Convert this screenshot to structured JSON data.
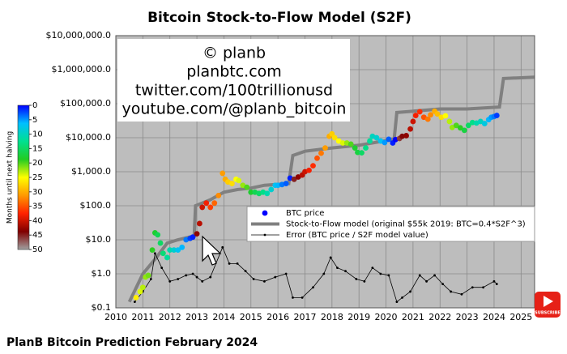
{
  "chart_data": {
    "type": "scatter",
    "title": "Bitcoin Stock-to-Flow Model (S2F)",
    "annotations": [
      "© planb",
      "planbtc.com",
      "twitter.com/100trillionusd",
      "youtube.com/@planb_bitcoin"
    ],
    "log_y": true,
    "grid": true,
    "legend": "lower right",
    "xlim": [
      2010,
      2025.5
    ],
    "xticks": [
      2010,
      2011,
      2012,
      2013,
      2014,
      2015,
      2016,
      2017,
      2018,
      2019,
      2020,
      2021,
      2022,
      2023,
      2024,
      2025
    ],
    "ylim": [
      0.1,
      10000000
    ],
    "yticks": [
      {
        "value": 0.1,
        "label": "$0.1"
      },
      {
        "value": 1,
        "label": "$1.0"
      },
      {
        "value": 10,
        "label": "$10.0"
      },
      {
        "value": 100,
        "label": "$100.0"
      },
      {
        "value": 1000,
        "label": "$1,000.0"
      },
      {
        "value": 10000,
        "label": "$10,000.0"
      },
      {
        "value": 100000,
        "label": "$100,000.0"
      },
      {
        "value": 1000000,
        "label": "$1,000,000.0"
      },
      {
        "value": 10000000,
        "label": "$10,000,000.0"
      }
    ],
    "colorbar": {
      "label": "Months until next halving",
      "clim": [
        0,
        50
      ],
      "ticks": [
        0,
        5,
        10,
        15,
        20,
        25,
        30,
        35,
        40,
        45,
        50
      ],
      "colors": [
        "#0000ff",
        "#00bfff",
        "#00e090",
        "#22cc22",
        "#ffff00",
        "#ff9900",
        "#ff2200",
        "#800000",
        "#a0a0a0"
      ]
    },
    "series": [
      {
        "name": "BTC price",
        "type": "scatter",
        "color": "#0000ff",
        "x": [
          2010.75,
          2010.9,
          2011.0,
          2011.1,
          2011.2,
          2011.35,
          2011.45,
          2011.55,
          2011.65,
          2011.75,
          2011.9,
          2012.0,
          2012.15,
          2012.3,
          2012.45,
          2012.6,
          2012.75,
          2012.85,
          2013.0,
          2013.1,
          2013.2,
          2013.35,
          2013.5,
          2013.65,
          2013.8,
          2013.95,
          2014.05,
          2014.15,
          2014.3,
          2014.45,
          2014.55,
          2014.7,
          2014.85,
          2015.0,
          2015.15,
          2015.3,
          2015.45,
          2015.6,
          2015.75,
          2015.9,
          2016.0,
          2016.15,
          2016.3,
          2016.45,
          2016.6,
          2016.75,
          2016.9,
          2017.0,
          2017.15,
          2017.3,
          2017.45,
          2017.6,
          2017.75,
          2017.9,
          2018.0,
          2018.1,
          2018.25,
          2018.4,
          2018.55,
          2018.7,
          2018.85,
          2018.95,
          2019.1,
          2019.25,
          2019.4,
          2019.5,
          2019.65,
          2019.8,
          2019.95,
          2020.1,
          2020.25,
          2020.35,
          2020.5,
          2020.6,
          2020.75,
          2020.9,
          2021.0,
          2021.1,
          2021.25,
          2021.4,
          2021.55,
          2021.65,
          2021.8,
          2021.9,
          2022.05,
          2022.2,
          2022.35,
          2022.45,
          2022.6,
          2022.75,
          2022.9,
          2023.05,
          2023.2,
          2023.35,
          2023.5,
          2023.65,
          2023.8,
          2023.9,
          2024.0,
          2024.1
        ],
        "values": [
          0.2,
          0.3,
          0.4,
          0.8,
          0.9,
          5,
          16,
          14,
          8,
          4,
          3,
          5,
          5,
          5,
          6,
          10,
          11,
          12,
          15,
          30,
          90,
          120,
          90,
          120,
          200,
          900,
          600,
          500,
          450,
          600,
          550,
          400,
          350,
          250,
          250,
          230,
          250,
          230,
          300,
          400,
          400,
          420,
          450,
          650,
          600,
          700,
          800,
          1000,
          1100,
          1500,
          2500,
          3500,
          5000,
          11000,
          13000,
          10000,
          8000,
          7000,
          7000,
          6500,
          5000,
          3700,
          3600,
          5000,
          8000,
          11000,
          10000,
          8000,
          7200,
          9000,
          7000,
          8800,
          9500,
          11000,
          11500,
          18000,
          30000,
          45000,
          58000,
          40000,
          35000,
          47000,
          60000,
          50000,
          40000,
          44000,
          30000,
          20000,
          23000,
          19500,
          16500,
          23000,
          28000,
          27000,
          30000,
          26000,
          34000,
          40000,
          42000,
          45000
        ],
        "months": [
          26,
          24,
          23,
          22,
          21,
          19,
          18,
          16,
          15,
          14,
          12,
          11,
          9,
          7,
          6,
          4,
          2,
          1,
          43,
          41,
          40,
          38,
          36,
          34,
          32,
          31,
          30,
          28,
          27,
          25,
          24,
          22,
          20,
          18,
          16,
          15,
          13,
          11,
          9,
          7,
          6,
          4,
          3,
          1,
          45,
          43,
          41,
          40,
          38,
          37,
          35,
          33,
          31,
          30,
          28,
          27,
          25,
          24,
          22,
          20,
          18,
          17,
          15,
          13,
          12,
          10,
          9,
          7,
          5,
          3,
          1,
          0,
          46,
          44,
          43,
          41,
          40,
          38,
          37,
          35,
          33,
          32,
          30,
          29,
          27,
          25,
          23,
          22,
          20,
          19,
          17,
          15,
          13,
          11,
          10,
          8,
          6,
          5,
          4,
          2
        ]
      },
      {
        "name": "Stock-to-Flow model (original $55k 2019:  BTC=0.4*S2F^3)",
        "type": "line",
        "color": "#808080",
        "x": [
          2010.5,
          2011.0,
          2011.5,
          2011.9,
          2012.3,
          2012.9,
          2012.95,
          2013.5,
          2014.0,
          2014.5,
          2015.0,
          2015.5,
          2016.4,
          2016.55,
          2017.0,
          2018.0,
          2019.0,
          2020.3,
          2020.4,
          2021.0,
          2022.0,
          2023.0,
          2024.2,
          2024.35,
          2025.5
        ],
        "values": [
          0.15,
          1,
          3,
          8,
          10,
          13,
          100,
          150,
          250,
          300,
          330,
          400,
          450,
          3000,
          4000,
          5000,
          6000,
          9000,
          55000,
          60000,
          70000,
          70000,
          80000,
          550000,
          600000
        ]
      },
      {
        "name": "Error (BTC price / S2F model value)",
        "type": "line",
        "color": "#000000",
        "x": [
          2010.7,
          2011.0,
          2011.3,
          2011.45,
          2011.7,
          2012.0,
          2012.3,
          2012.6,
          2012.85,
          2013.0,
          2013.2,
          2013.5,
          2013.95,
          2014.2,
          2014.5,
          2014.8,
          2015.1,
          2015.5,
          2015.9,
          2016.3,
          2016.55,
          2016.9,
          2017.3,
          2017.7,
          2017.95,
          2018.2,
          2018.5,
          2018.9,
          2019.2,
          2019.5,
          2019.8,
          2020.1,
          2020.4,
          2020.6,
          2020.9,
          2021.25,
          2021.5,
          2021.8,
          2022.1,
          2022.4,
          2022.8,
          2023.2,
          2023.6,
          2024.0,
          2024.1
        ],
        "values": [
          0.15,
          0.3,
          0.7,
          4,
          1.5,
          0.6,
          0.7,
          0.9,
          1.0,
          0.8,
          0.6,
          0.8,
          6,
          2,
          2,
          1.2,
          0.7,
          0.6,
          0.8,
          1,
          0.2,
          0.2,
          0.4,
          1,
          3,
          1.5,
          1.2,
          0.7,
          0.6,
          1.5,
          1,
          0.9,
          0.15,
          0.2,
          0.3,
          0.9,
          0.6,
          0.9,
          0.5,
          0.3,
          0.25,
          0.4,
          0.4,
          0.6,
          0.5
        ]
      }
    ]
  },
  "caption": "PlanB Bitcoin Prediction February 2024",
  "subscribe_button": "SUBSCRIBE"
}
